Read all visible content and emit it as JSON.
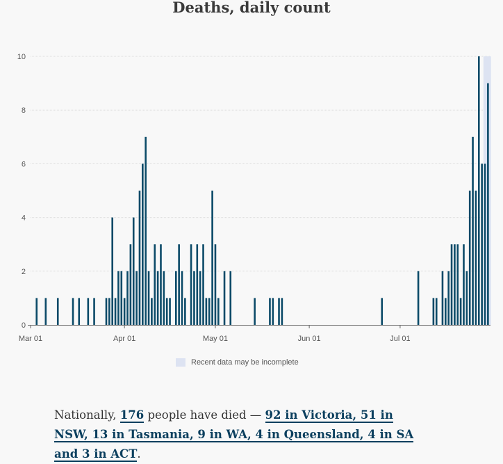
{
  "title": "Deaths, daily count",
  "chart_data": {
    "type": "bar",
    "title": "Deaths, daily count",
    "xlabel": "",
    "ylabel": "",
    "ylim": [
      0,
      10
    ],
    "yticks": [
      0,
      2,
      4,
      6,
      8,
      10
    ],
    "start_date": "Mar 01",
    "x_tick_labels": [
      {
        "day": 0,
        "label": "Mar 01"
      },
      {
        "day": 31,
        "label": "Apr 01"
      },
      {
        "day": 61,
        "label": "May 01"
      },
      {
        "day": 92,
        "label": "Jun 01"
      },
      {
        "day": 122,
        "label": "Jul 01"
      }
    ],
    "bars": [
      {
        "day": 2,
        "value": 1
      },
      {
        "day": 5,
        "value": 1
      },
      {
        "day": 9,
        "value": 1
      },
      {
        "day": 14,
        "value": 1
      },
      {
        "day": 16,
        "value": 1
      },
      {
        "day": 19,
        "value": 1
      },
      {
        "day": 21,
        "value": 1
      },
      {
        "day": 25,
        "value": 1
      },
      {
        "day": 26,
        "value": 1
      },
      {
        "day": 27,
        "value": 4
      },
      {
        "day": 28,
        "value": 1
      },
      {
        "day": 29,
        "value": 2
      },
      {
        "day": 30,
        "value": 2
      },
      {
        "day": 31,
        "value": 1
      },
      {
        "day": 32,
        "value": 2
      },
      {
        "day": 33,
        "value": 3
      },
      {
        "day": 34,
        "value": 4
      },
      {
        "day": 35,
        "value": 2
      },
      {
        "day": 36,
        "value": 5
      },
      {
        "day": 37,
        "value": 6
      },
      {
        "day": 38,
        "value": 7
      },
      {
        "day": 39,
        "value": 2
      },
      {
        "day": 40,
        "value": 1
      },
      {
        "day": 41,
        "value": 3
      },
      {
        "day": 42,
        "value": 2
      },
      {
        "day": 43,
        "value": 3
      },
      {
        "day": 44,
        "value": 2
      },
      {
        "day": 45,
        "value": 1
      },
      {
        "day": 46,
        "value": 1
      },
      {
        "day": 48,
        "value": 2
      },
      {
        "day": 49,
        "value": 3
      },
      {
        "day": 50,
        "value": 2
      },
      {
        "day": 51,
        "value": 1
      },
      {
        "day": 53,
        "value": 3
      },
      {
        "day": 54,
        "value": 2
      },
      {
        "day": 55,
        "value": 3
      },
      {
        "day": 56,
        "value": 2
      },
      {
        "day": 57,
        "value": 3
      },
      {
        "day": 58,
        "value": 1
      },
      {
        "day": 59,
        "value": 1
      },
      {
        "day": 60,
        "value": 5
      },
      {
        "day": 61,
        "value": 3
      },
      {
        "day": 62,
        "value": 1
      },
      {
        "day": 64,
        "value": 2
      },
      {
        "day": 66,
        "value": 2
      },
      {
        "day": 74,
        "value": 1
      },
      {
        "day": 79,
        "value": 1
      },
      {
        "day": 80,
        "value": 1
      },
      {
        "day": 82,
        "value": 1
      },
      {
        "day": 83,
        "value": 1
      },
      {
        "day": 116,
        "value": 1
      },
      {
        "day": 128,
        "value": 2
      },
      {
        "day": 133,
        "value": 1
      },
      {
        "day": 134,
        "value": 1
      },
      {
        "day": 136,
        "value": 2
      },
      {
        "day": 137,
        "value": 1
      },
      {
        "day": 138,
        "value": 2
      },
      {
        "day": 139,
        "value": 3
      },
      {
        "day": 140,
        "value": 3
      },
      {
        "day": 141,
        "value": 3
      },
      {
        "day": 142,
        "value": 1
      },
      {
        "day": 143,
        "value": 3
      },
      {
        "day": 144,
        "value": 2
      },
      {
        "day": 145,
        "value": 5
      },
      {
        "day": 146,
        "value": 7
      },
      {
        "day": 147,
        "value": 5
      },
      {
        "day": 148,
        "value": 10
      },
      {
        "day": 149,
        "value": 6
      },
      {
        "day": 150,
        "value": 6
      },
      {
        "day": 151,
        "value": 9
      }
    ],
    "incomplete_from_day": 149.5,
    "incomplete_to_day": 152,
    "legend": "Recent data may be incomplete",
    "bar_color": "#0b4a68",
    "shade_color": "#dde3f2"
  },
  "summary": {
    "prefix": "Nationally, ",
    "count": "176",
    "middle": " people have died — ",
    "breakdown": "92 in Victoria, 51 in NSW, 13 in Tasmania, 9 in WA, 4 in Queensland, 4 in SA and 3 in ACT",
    "suffix": "."
  }
}
